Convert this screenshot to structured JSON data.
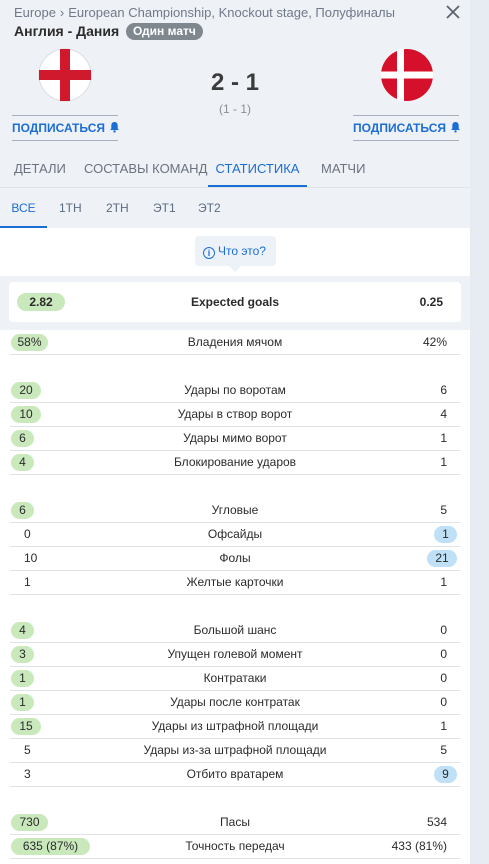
{
  "breadcrumb": {
    "region": "Europe",
    "separator": "›",
    "tournament": "European Championship, Knockout stage, Полуфиналы"
  },
  "match": {
    "title": "Англия - Дания",
    "badge": "Один матч",
    "score": "2 - 1",
    "halftime": "(1 - 1)"
  },
  "home": {
    "name": "Англия",
    "subscribe_label": "ПОДПИСАТЬСЯ"
  },
  "away": {
    "name": "Дания",
    "subscribe_label": "ПОДПИСАТЬСЯ"
  },
  "tabs": [
    "ДЕТАЛИ",
    "СОСТАВЫ КОМАНД",
    "СТАТИСТИКА",
    "МАТЧИ"
  ],
  "active_tab": "СТАТИСТИКА",
  "periods": [
    "ВСЕ",
    "1TH",
    "2TH",
    "ЭТ1",
    "ЭТ2"
  ],
  "active_period": "ВСЕ",
  "info_button": {
    "icon": "info-icon",
    "label": "Что это?"
  },
  "expected_goals": {
    "label": "Expected goals",
    "home": "2.82",
    "away": "0.25"
  },
  "stat_groups": [
    [
      {
        "label": "Владения мячом",
        "home": "58%",
        "away": "42%",
        "hl": "home"
      }
    ],
    [
      {
        "label": "Удары по воротам",
        "home": "20",
        "away": "6",
        "hl": "home"
      },
      {
        "label": "Удары в створ ворот",
        "home": "10",
        "away": "4",
        "hl": "home"
      },
      {
        "label": "Удары мимо ворот",
        "home": "6",
        "away": "1",
        "hl": "home"
      },
      {
        "label": "Блокирование ударов",
        "home": "4",
        "away": "1",
        "hl": "home"
      }
    ],
    [
      {
        "label": "Угловые",
        "home": "6",
        "away": "5",
        "hl": "home"
      },
      {
        "label": "Офсайды",
        "home": "0",
        "away": "1",
        "hl": "away"
      },
      {
        "label": "Фолы",
        "home": "10",
        "away": "21",
        "hl": "away"
      },
      {
        "label": "Желтые карточки",
        "home": "1",
        "away": "1",
        "hl": "none"
      }
    ],
    [
      {
        "label": "Большой шанс",
        "home": "4",
        "away": "0",
        "hl": "home"
      },
      {
        "label": "Упущен голевой момент",
        "home": "3",
        "away": "0",
        "hl": "home"
      },
      {
        "label": "Контратаки",
        "home": "1",
        "away": "0",
        "hl": "home"
      },
      {
        "label": "Удары после контратак",
        "home": "1",
        "away": "0",
        "hl": "home"
      },
      {
        "label": "Удары из штрафной площади",
        "home": "15",
        "away": "1",
        "hl": "home"
      },
      {
        "label": "Удары из-за штрафной площади",
        "home": "5",
        "away": "5",
        "hl": "none"
      },
      {
        "label": "Отбито вратарем",
        "home": "3",
        "away": "9",
        "hl": "away"
      }
    ],
    [
      {
        "label": "Пасы",
        "home": "730",
        "away": "534",
        "hl": "home"
      },
      {
        "label": "Точность передач",
        "home": "635 (87%)",
        "away": "433 (81%)",
        "hl": "home"
      }
    ]
  ],
  "colors": {
    "accent": "#1b6ed6",
    "home_highlight": "#c9e8bc",
    "away_highlight": "#bfe0f7",
    "panel": "#eef1f5",
    "badge": "#7f878f"
  }
}
